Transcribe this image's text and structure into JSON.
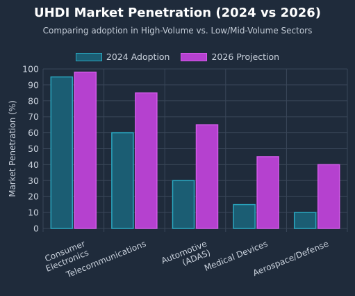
{
  "chart_data": {
    "type": "bar",
    "title": "UHDI Market Penetration (2024 vs 2026)",
    "subtitle": "Comparing adoption in High-Volume vs. Low/Mid-Volume Sectors",
    "ylabel": "Market Penetration (%)",
    "xlabel": "",
    "ylim": [
      0,
      100
    ],
    "yticks": [
      0,
      10,
      20,
      30,
      40,
      50,
      60,
      70,
      80,
      90,
      100
    ],
    "grid": true,
    "legend_position": "top-center",
    "categories": [
      [
        "Consumer",
        "Electronics"
      ],
      [
        "Telecommunications"
      ],
      [
        "Automotive",
        "(ADAS)"
      ],
      [
        "Medical Devices"
      ],
      [
        "Aerospace/Defense"
      ]
    ],
    "series": [
      {
        "name": "2024 Adoption",
        "values": [
          95,
          60,
          30,
          15,
          10
        ],
        "fill": "#1b5d73",
        "stroke": "#2aa7c0"
      },
      {
        "name": "2026 Projection",
        "values": [
          98,
          85,
          65,
          45,
          40
        ],
        "fill": "#b541cf",
        "stroke": "#d25ae8"
      }
    ]
  }
}
